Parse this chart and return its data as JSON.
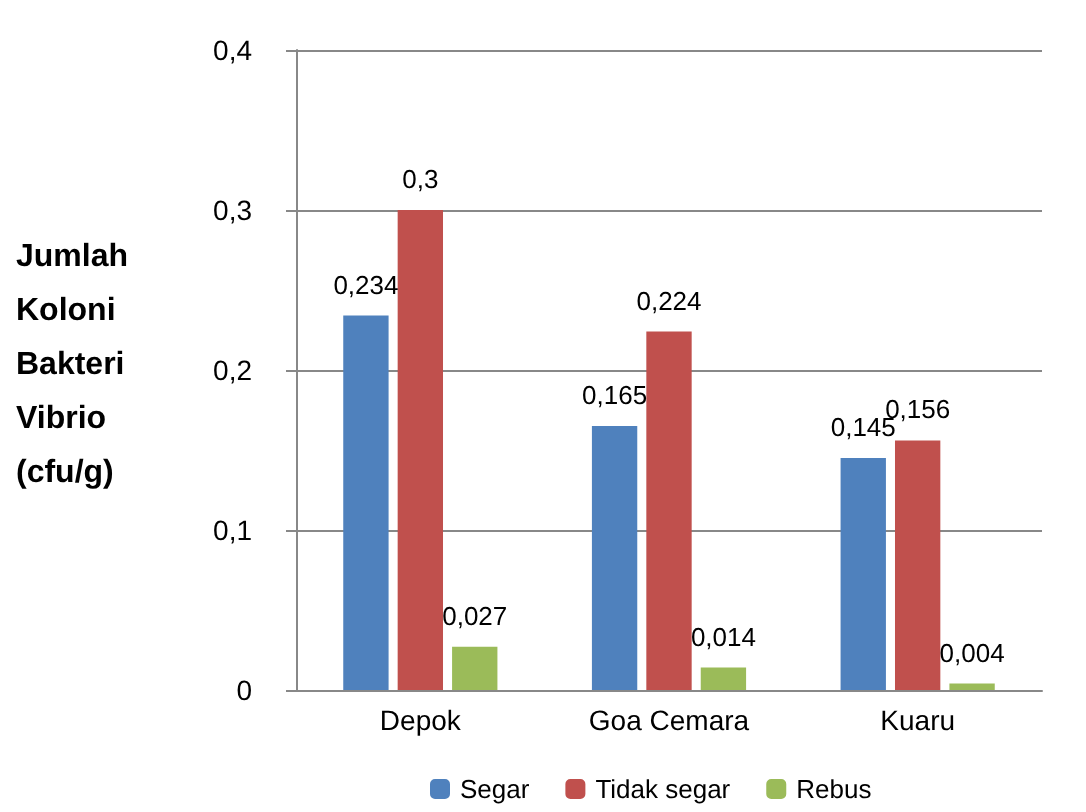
{
  "chart_data": {
    "type": "bar",
    "ylabel": "Jumlah Koloni Bakteri Vibrio (cfu/g)",
    "categories": [
      "Depok",
      "Goa Cemara",
      "Kuaru"
    ],
    "series": [
      {
        "name": "Segar",
        "color": "#4f81bd",
        "values": [
          0.234,
          0.165,
          0.145
        ],
        "value_labels": [
          "0,234",
          "0,165",
          "0,145"
        ]
      },
      {
        "name": "Tidak segar",
        "color": "#c0504d",
        "values": [
          0.3,
          0.224,
          0.156
        ],
        "value_labels": [
          "0,3",
          "0,224",
          "0,156"
        ]
      },
      {
        "name": "Rebus",
        "color": "#9bbb59",
        "values": [
          0.027,
          0.014,
          0.004
        ],
        "value_labels": [
          "0,027",
          "0,014",
          "0,004"
        ]
      }
    ],
    "ylim": [
      0,
      0.4
    ],
    "yticks": [
      {
        "value": 0,
        "label": "0"
      },
      {
        "value": 0.1,
        "label": "0,1"
      },
      {
        "value": 0.2,
        "label": "0,2"
      },
      {
        "value": 0.3,
        "label": "0,3"
      },
      {
        "value": 0.4,
        "label": "0,4"
      }
    ],
    "grid": "y",
    "legend": "bottom"
  }
}
